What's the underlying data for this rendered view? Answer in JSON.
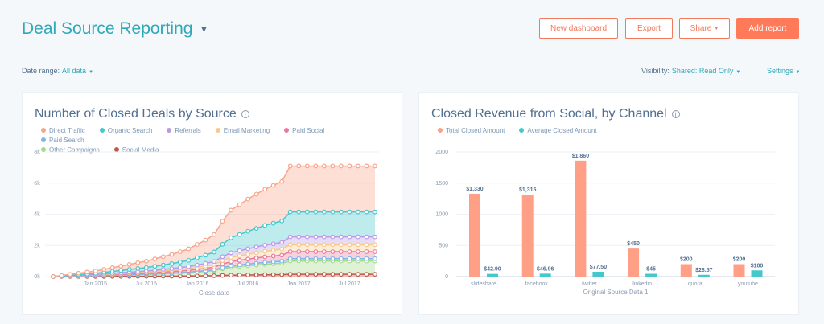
{
  "header": {
    "title": "Deal Source Reporting",
    "new_dashboard": "New dashboard",
    "export": "Export",
    "share": "Share",
    "add_report": "Add report"
  },
  "filters": {
    "date_range_label": "Date range:",
    "date_range_value": "All data",
    "visibility_label": "Visibility:",
    "visibility_value": "Shared: Read Only",
    "settings": "Settings"
  },
  "colors": {
    "accent": "#2fa8b8",
    "primary": "#ff7a59"
  },
  "chart_data": [
    {
      "type": "area",
      "stacked": true,
      "title": "Number of Closed Deals by Source",
      "xlabel": "Close date",
      "ylabel": "",
      "ylim": [
        0,
        8000
      ],
      "yticks": [
        "0k",
        "2k",
        "4k",
        "6k",
        "8k"
      ],
      "xticks": [
        "Jan 2015",
        "Jul 2015",
        "Jan 2016",
        "Jul 2016",
        "Jan 2017",
        "Jul 2017"
      ],
      "xtick_values": [
        "2015-01",
        "2015-07",
        "2016-01",
        "2016-07",
        "2017-01",
        "2017-07"
      ],
      "grid": true,
      "legend": "top",
      "x": [
        "2014-08",
        "2014-09",
        "2014-10",
        "2014-11",
        "2014-12",
        "2015-01",
        "2015-02",
        "2015-03",
        "2015-04",
        "2015-05",
        "2015-06",
        "2015-07",
        "2015-08",
        "2015-09",
        "2015-10",
        "2015-11",
        "2015-12",
        "2016-01",
        "2016-02",
        "2016-03",
        "2016-04",
        "2016-05",
        "2016-06",
        "2016-07",
        "2016-08",
        "2016-09",
        "2016-10",
        "2016-11",
        "2016-12",
        "2017-01",
        "2017-02",
        "2017-03",
        "2017-04",
        "2017-05",
        "2017-06",
        "2017-07",
        "2017-08",
        "2017-09",
        "2017-10"
      ],
      "series": [
        {
          "name": "Direct Traffic",
          "color": "#f8a48a",
          "values": [
            0,
            30,
            60,
            90,
            120,
            150,
            190,
            240,
            280,
            320,
            370,
            410,
            470,
            530,
            590,
            660,
            740,
            860,
            970,
            1120,
            1480,
            1770,
            1920,
            2070,
            2200,
            2330,
            2430,
            2540,
            2950,
            2950,
            2950,
            2950,
            2950,
            2950,
            2950,
            2950,
            2950,
            2950,
            2950
          ]
        },
        {
          "name": "Organic Search",
          "color": "#45c8cc",
          "values": [
            0,
            16,
            32,
            48,
            64,
            80,
            104,
            128,
            152,
            176,
            200,
            224,
            256,
            288,
            320,
            360,
            400,
            464,
            528,
            608,
            800,
            960,
            1040,
            1120,
            1192,
            1264,
            1320,
            1376,
            1600,
            1600,
            1600,
            1600,
            1600,
            1600,
            1600,
            1600,
            1600,
            1600,
            1600
          ]
        },
        {
          "name": "Referrals",
          "color": "#b99ae8",
          "values": [
            0,
            5,
            10,
            15,
            20,
            25,
            33,
            40,
            48,
            55,
            63,
            70,
            80,
            90,
            100,
            113,
            125,
            145,
            165,
            190,
            250,
            300,
            325,
            350,
            373,
            395,
            413,
            430,
            500,
            500,
            500,
            500,
            500,
            500,
            500,
            500,
            500,
            500,
            500
          ]
        },
        {
          "name": "Email Marketing",
          "color": "#f8c88a",
          "values": [
            0,
            5,
            9,
            14,
            18,
            23,
            29,
            36,
            43,
            50,
            56,
            63,
            72,
            81,
            90,
            101,
            113,
            131,
            149,
            171,
            225,
            270,
            293,
            315,
            335,
            356,
            371,
            387,
            450,
            450,
            450,
            450,
            450,
            450,
            450,
            450,
            450,
            450,
            450
          ]
        },
        {
          "name": "Paid Social",
          "color": "#ea7a9a",
          "values": [
            0,
            5,
            9,
            14,
            18,
            23,
            29,
            36,
            43,
            50,
            56,
            63,
            72,
            81,
            90,
            101,
            113,
            131,
            149,
            171,
            225,
            270,
            293,
            315,
            335,
            356,
            371,
            387,
            450,
            450,
            450,
            450,
            450,
            450,
            450,
            450,
            450,
            450,
            450
          ]
        },
        {
          "name": "Paid Search",
          "color": "#7fb6ea",
          "values": [
            0,
            2,
            3,
            5,
            6,
            8,
            10,
            12,
            14,
            17,
            19,
            21,
            24,
            27,
            30,
            34,
            38,
            44,
            50,
            57,
            75,
            90,
            98,
            105,
            112,
            119,
            124,
            129,
            150,
            150,
            150,
            150,
            150,
            150,
            150,
            150,
            150,
            150,
            150
          ]
        },
        {
          "name": "Other Campaigns",
          "color": "#a6d98a",
          "values": [
            0,
            9,
            17,
            26,
            34,
            43,
            55,
            68,
            81,
            94,
            106,
            119,
            136,
            153,
            170,
            191,
            213,
            247,
            281,
            323,
            425,
            510,
            553,
            595,
            633,
            672,
            701,
            731,
            850,
            850,
            850,
            850,
            850,
            850,
            850,
            850,
            850,
            850,
            850
          ]
        },
        {
          "name": "Social Media",
          "color": "#c0574a",
          "values": [
            0,
            2,
            3,
            5,
            6,
            8,
            10,
            12,
            14,
            17,
            19,
            21,
            24,
            27,
            30,
            34,
            38,
            44,
            50,
            57,
            75,
            90,
            98,
            105,
            112,
            119,
            124,
            129,
            150,
            150,
            150,
            150,
            150,
            150,
            150,
            150,
            150,
            150,
            150
          ]
        }
      ]
    },
    {
      "type": "bar",
      "title": "Closed Revenue from Social, by Channel",
      "xlabel": "Original Source Data 1",
      "ylabel": "",
      "ylim": [
        0,
        2000
      ],
      "yticks": [
        "0",
        "500",
        "1000",
        "1500",
        "2000"
      ],
      "grid": true,
      "legend": "top",
      "categories": [
        "slideshare",
        "facebook",
        "twitter",
        "linkedin",
        "quora",
        "youtube"
      ],
      "series": [
        {
          "name": "Total Closed Amount",
          "color": "#ff9f85",
          "values": [
            1330,
            1315,
            1860,
            450,
            200,
            200
          ],
          "labels": [
            "$1,330",
            "$1,315",
            "$1,860",
            "$450",
            "$200",
            "$200"
          ]
        },
        {
          "name": "Average Closed Amount",
          "color": "#45c8cc",
          "values": [
            42.9,
            46.96,
            77.5,
            45,
            28.57,
            100
          ],
          "labels": [
            "$42.90",
            "$46.96",
            "$77.50",
            "$45",
            "$28.57",
            "$100"
          ]
        }
      ]
    }
  ]
}
